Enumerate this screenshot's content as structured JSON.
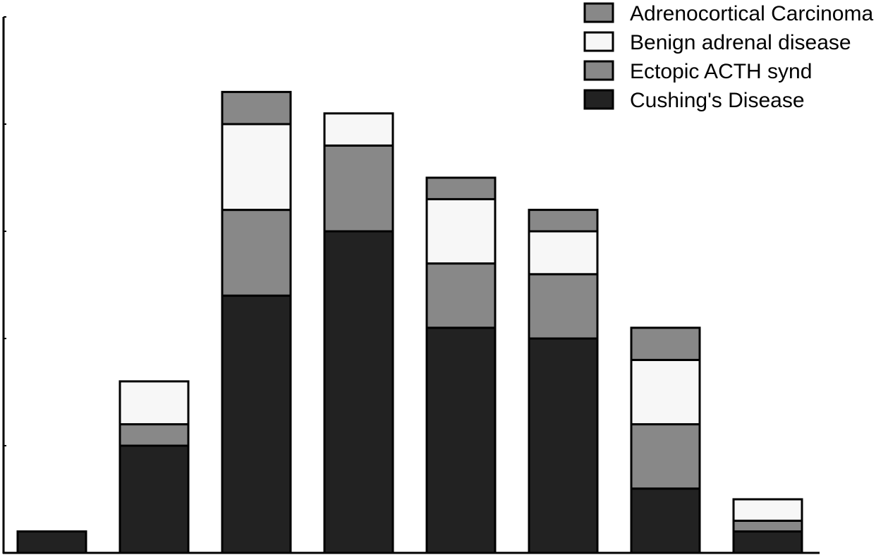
{
  "chart_data": {
    "type": "bar",
    "stacked": true,
    "categories": [
      "",
      "",
      "",
      "",
      "",
      "",
      "",
      ""
    ],
    "series": [
      {
        "name": "Cushing's Disease",
        "color": "#222222",
        "values": [
          1,
          5,
          12,
          15,
          10.5,
          10,
          3,
          1
        ]
      },
      {
        "name": "Ectopic ACTH synd",
        "color": "#888888",
        "values": [
          0,
          1,
          4,
          4,
          3,
          3,
          3,
          0.5
        ]
      },
      {
        "name": "Benign adrenal disease",
        "color": "#f7f7f7",
        "values": [
          0,
          2,
          4,
          1.5,
          3,
          2,
          3,
          1
        ]
      },
      {
        "name": "Adrenocortical Carcinoma",
        "color": "#888888",
        "values": [
          0,
          0,
          1.5,
          0,
          1,
          1,
          1.5,
          0
        ]
      }
    ],
    "ylim": [
      0,
      25
    ],
    "y_ticks": [
      5,
      10,
      15,
      20,
      25
    ],
    "title": "",
    "xlabel": "",
    "ylabel": "",
    "grid": false,
    "legend_position": "top-right"
  }
}
